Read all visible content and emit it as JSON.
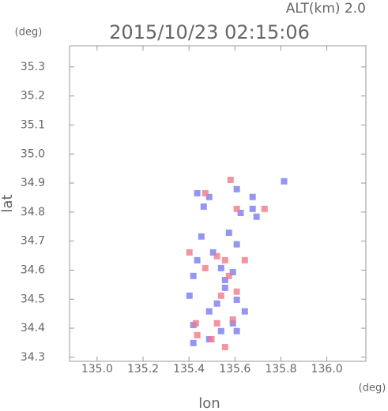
{
  "chart_data": {
    "type": "scatter",
    "title": "2015/10/23 02:15:06",
    "subtitle": "ALT(km) 2.0",
    "x_label": "lon",
    "y_label": "lat",
    "x_unit": "(deg)",
    "y_unit": "(deg)",
    "xlim": [
      134.88,
      136.17
    ],
    "ylim": [
      34.286,
      35.373
    ],
    "xticks": [
      {
        "value": 135,
        "label": "135.0"
      },
      135.2,
      135.4,
      135.6,
      135.8,
      {
        "value": 136,
        "label": "136.0"
      }
    ],
    "yticks": [
      34.3,
      34.4,
      34.5,
      34.6,
      34.7,
      34.8,
      34.9,
      {
        "value": 35,
        "label": "35.0"
      },
      35.1,
      35.2,
      35.3
    ],
    "series": [
      {
        "color": "#7a7af0",
        "x": [
          135.436,
          135.464,
          135.488,
          135.608,
          135.625,
          135.677,
          135.694,
          135.574,
          135.608,
          135.505,
          135.436,
          135.54,
          135.591,
          135.419,
          135.557,
          135.608,
          135.522,
          135.643,
          135.591,
          135.54,
          135.488,
          135.419,
          135.608,
          135.402,
          135.454,
          135.814,
          135.677,
          135.557,
          135.488,
          135.419
        ],
        "values": [
          34.865,
          34.819,
          34.852,
          34.879,
          34.797,
          34.852,
          34.784,
          34.729,
          34.689,
          34.661,
          34.634,
          34.607,
          34.593,
          34.58,
          34.539,
          34.498,
          34.485,
          34.458,
          34.417,
          34.39,
          34.362,
          34.349,
          34.39,
          34.512,
          34.716,
          34.906,
          34.811,
          34.566,
          34.458,
          34.411
        ]
      },
      {
        "color": "#f07a8a",
        "x": [
          135.471,
          135.581,
          135.608,
          135.729,
          135.522,
          135.471,
          135.557,
          135.574,
          135.54,
          135.608,
          135.43,
          135.591,
          135.522,
          135.498,
          135.557,
          135.436,
          135.402,
          135.643
        ],
        "values": [
          34.865,
          34.911,
          34.811,
          34.811,
          34.648,
          34.607,
          34.634,
          34.58,
          34.512,
          34.526,
          34.417,
          34.43,
          34.417,
          34.362,
          34.335,
          34.376,
          34.661,
          34.634
        ]
      }
    ]
  }
}
